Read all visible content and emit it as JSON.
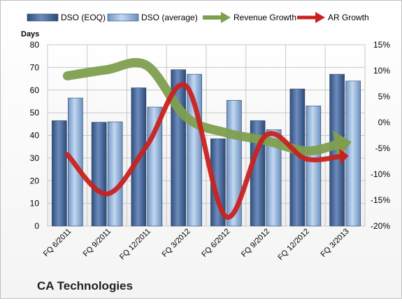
{
  "company": "CA Technologies",
  "chart_data": {
    "type": "bar",
    "left_axis_title": "Days",
    "categories": [
      "FQ 6/2011",
      "FQ 9/2011",
      "FQ 12/2011",
      "FQ 3/2012",
      "FQ 6/2012",
      "FQ 9/2012",
      "FQ 12/2012",
      "FQ 3/2013"
    ],
    "ylim_left": [
      0,
      80
    ],
    "ylim_right": [
      -0.2,
      0.15
    ],
    "left_ticks": [
      0,
      10,
      20,
      30,
      40,
      50,
      60,
      70,
      80
    ],
    "left_tick_labels": [
      "0",
      "10",
      "20",
      "30",
      "40",
      "50",
      "60",
      "70",
      "80"
    ],
    "right_ticks": [
      -0.2,
      -0.15,
      -0.1,
      -0.05,
      0,
      0.05,
      0.1,
      0.15
    ],
    "right_tick_labels": [
      "-20%",
      "-15%",
      "-10%",
      "-5%",
      "0%",
      "5%",
      "10%",
      "15%"
    ],
    "grid": true,
    "legend_position": "top",
    "series": [
      {
        "name": "DSO (EOQ)",
        "type": "bar",
        "axis": "left",
        "color": "#4a6a99",
        "values": [
          46.5,
          45.8,
          61,
          69,
          38.5,
          46.5,
          60.5,
          67
        ]
      },
      {
        "name": "DSO (average)",
        "type": "bar",
        "axis": "left",
        "color": "#8fb3dd",
        "values": [
          56.5,
          46,
          52.5,
          67,
          55.5,
          42.5,
          53,
          64
        ]
      },
      {
        "name": "Revenue Growth",
        "type": "line",
        "axis": "right",
        "color": "#7f9f4f",
        "values": [
          0.09,
          0.102,
          0.11,
          0.01,
          -0.02,
          -0.035,
          -0.055,
          -0.04
        ]
      },
      {
        "name": "AR Growth",
        "type": "line",
        "axis": "right",
        "color": "#c8221f",
        "values": [
          -0.062,
          -0.138,
          -0.045,
          0.07,
          -0.182,
          -0.025,
          -0.07,
          -0.065
        ]
      }
    ]
  }
}
